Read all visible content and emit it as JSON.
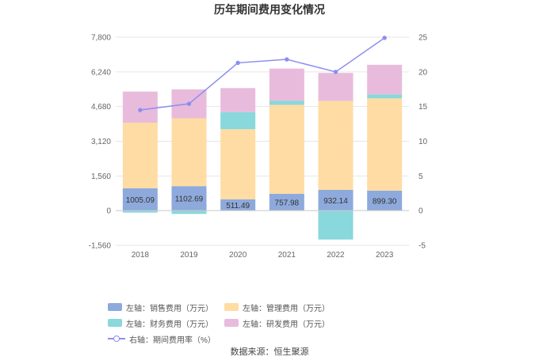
{
  "title": "历年期间费用变化情况",
  "source": "数据来源：恒生聚源",
  "colors": {
    "sales": "#8eaadc",
    "admin": "#ffdca3",
    "finance": "#88d8dc",
    "rnd": "#e8bbdc",
    "rate": "#8b8ef0"
  },
  "chart_data": {
    "type": "bar",
    "stacked": true,
    "categories": [
      "2018",
      "2019",
      "2020",
      "2021",
      "2022",
      "2023"
    ],
    "series": [
      {
        "name": "左轴：销售费用（万元）",
        "key": "sales",
        "axis": "left",
        "values": [
          1005.09,
          1102.69,
          511.49,
          757.98,
          932.14,
          899.3
        ],
        "labels": [
          "1005.09",
          "1102.69",
          "511.49",
          "757.98",
          "932.14",
          "899.30"
        ]
      },
      {
        "name": "左轴：管理费用（万元）",
        "key": "admin",
        "axis": "left",
        "values": [
          2950,
          3050,
          3150,
          4000,
          4000,
          4150
        ]
      },
      {
        "name": "左轴：财务费用（万元）",
        "key": "finance",
        "axis": "left",
        "values": [
          -90,
          -150,
          770,
          180,
          -1300,
          180
        ]
      },
      {
        "name": "左轴：研发费用（万元）",
        "key": "rnd",
        "axis": "left",
        "values": [
          1400,
          1300,
          1080,
          1450,
          1260,
          1330
        ]
      },
      {
        "name": "右轴：期间费用率（%）",
        "key": "rate",
        "axis": "right",
        "type": "line",
        "values": [
          14.5,
          15.4,
          21.3,
          21.8,
          20.0,
          24.9
        ]
      }
    ],
    "left_axis": {
      "min": -1560,
      "max": 7800,
      "ticks": [
        "-1,560",
        "0",
        "1,560",
        "3,120",
        "4,680",
        "6,240",
        "7,800"
      ]
    },
    "right_axis": {
      "min": -5,
      "max": 25,
      "ticks": [
        "-5",
        "0",
        "5",
        "10",
        "15",
        "20",
        "25"
      ]
    },
    "grid": true,
    "legend_position": "bottom"
  }
}
